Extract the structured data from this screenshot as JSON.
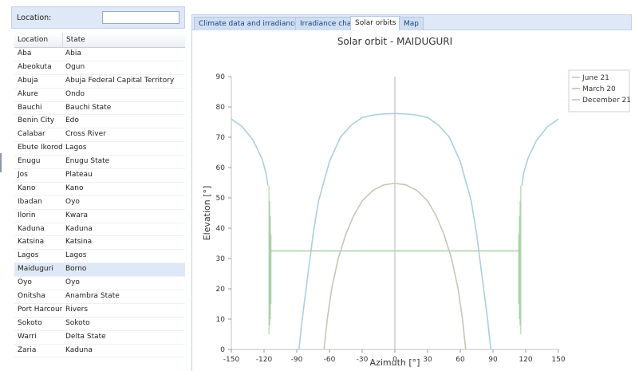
{
  "location_filter": {
    "label": "Location:",
    "value": ""
  },
  "table": {
    "headers": [
      "Location",
      "State"
    ],
    "rows": [
      [
        "Aba",
        "Abia"
      ],
      [
        "Abeokuta",
        "Ogun"
      ],
      [
        "Abuja",
        "Abuja Federal Capital Territory"
      ],
      [
        "Akure",
        "Ondo"
      ],
      [
        "Bauchi",
        "Bauchi State"
      ],
      [
        "Benin City",
        "Edo"
      ],
      [
        "Calabar",
        "Cross River"
      ],
      [
        "Ebute Ikorodu",
        "Lagos"
      ],
      [
        "Enugu",
        "Enugu State"
      ],
      [
        "Jos",
        "Plateau"
      ],
      [
        "Kano",
        "Kano"
      ],
      [
        "Ibadan",
        "Oyo"
      ],
      [
        "Ilorin",
        "Kwara"
      ],
      [
        "Kaduna",
        "Kaduna"
      ],
      [
        "Katsina",
        "Katsina"
      ],
      [
        "Lagos",
        "Lagos"
      ],
      [
        "Maiduguri",
        "Borno"
      ],
      [
        "Oyo",
        "Oyo"
      ],
      [
        "Onitsha",
        "Anambra State"
      ],
      [
        "Port Harcourt",
        "Rivers"
      ],
      [
        "Sokoto",
        "Sokoto"
      ],
      [
        "Warri",
        "Delta State"
      ],
      [
        "Zaria",
        "Kaduna"
      ]
    ],
    "selected_row": 16
  },
  "tabs": [
    "Climate data and irradiance",
    "Irradiance chart",
    "Solar orbits",
    "Map"
  ],
  "active_tab": 2,
  "colors": {
    "june": "#a9cfe0",
    "march": "#a8d2a4",
    "december": "#c8c6b4",
    "axis": "#c0c0c0",
    "accent": "#dfe8f6"
  },
  "chart_data": {
    "type": "line",
    "title": "Solar orbit - MAIDUGURI",
    "xlabel": "Azimuth [°]",
    "ylabel": "Elevation [°]",
    "xlim": [
      -150,
      150
    ],
    "ylim": [
      0,
      90
    ],
    "xticks": [
      -150,
      -120,
      -90,
      -60,
      -30,
      0,
      30,
      60,
      90,
      120,
      150
    ],
    "yticks": [
      0,
      10,
      20,
      30,
      40,
      50,
      60,
      70,
      80,
      90
    ],
    "legend": "top-right",
    "series": [
      {
        "name": "June 21",
        "color": "#a9cfe0",
        "segments": [
          {
            "x": [
              -150,
              -140,
              -130,
              -122,
              -118,
              -116.5
            ],
            "y": [
              76,
              73.5,
              69,
              63,
              58,
              54
            ]
          },
          {
            "x": [
              -88,
              -85,
              -80,
              -75,
              -70,
              -60,
              -50,
              -40,
              -30,
              -20,
              -10,
              0,
              10,
              20,
              30,
              40,
              50,
              60,
              70,
              75,
              80,
              85,
              88
            ],
            "y": [
              0,
              10,
              24,
              38,
              49,
              62,
              70,
              74,
              76.5,
              77.3,
              77.7,
              77.8,
              77.7,
              77.3,
              76.5,
              74,
              70,
              62,
              49,
              38,
              24,
              10,
              0
            ]
          },
          {
            "x": [
              116.5,
              118,
              122,
              130,
              140,
              150
            ],
            "y": [
              54,
              58,
              63,
              69,
              73.5,
              76
            ]
          }
        ]
      },
      {
        "name": "March 20",
        "color": "#a8d2a4",
        "segments": [
          {
            "x": [
              -114,
              114
            ],
            "y": [
              32.5,
              32.5
            ]
          }
        ],
        "spikes": [
          {
            "x": -115.5,
            "y1": 5,
            "y2": 54
          },
          {
            "x": -114.8,
            "y1": 8,
            "y2": 49
          },
          {
            "x": -114.2,
            "y1": 10,
            "y2": 44
          },
          {
            "x": -113.6,
            "y1": 15,
            "y2": 38
          },
          {
            "x": 113.6,
            "y1": 15,
            "y2": 38
          },
          {
            "x": 114.2,
            "y1": 10,
            "y2": 44
          },
          {
            "x": 114.8,
            "y1": 8,
            "y2": 49
          },
          {
            "x": 115.5,
            "y1": 5,
            "y2": 54
          }
        ]
      },
      {
        "name": "December 21",
        "color": "#c8c6b4",
        "segments": [
          {
            "x": [
              -65,
              -62,
              -58,
              -52,
              -45,
              -38,
              -30,
              -20,
              -10,
              0,
              10,
              20,
              30,
              38,
              45,
              52,
              58,
              62,
              65
            ],
            "y": [
              0,
              10,
              20,
              30,
              38,
              44,
              49,
              52.5,
              54.3,
              54.8,
              54.3,
              52.5,
              49,
              44,
              38,
              30,
              20,
              10,
              0
            ]
          }
        ]
      }
    ]
  }
}
